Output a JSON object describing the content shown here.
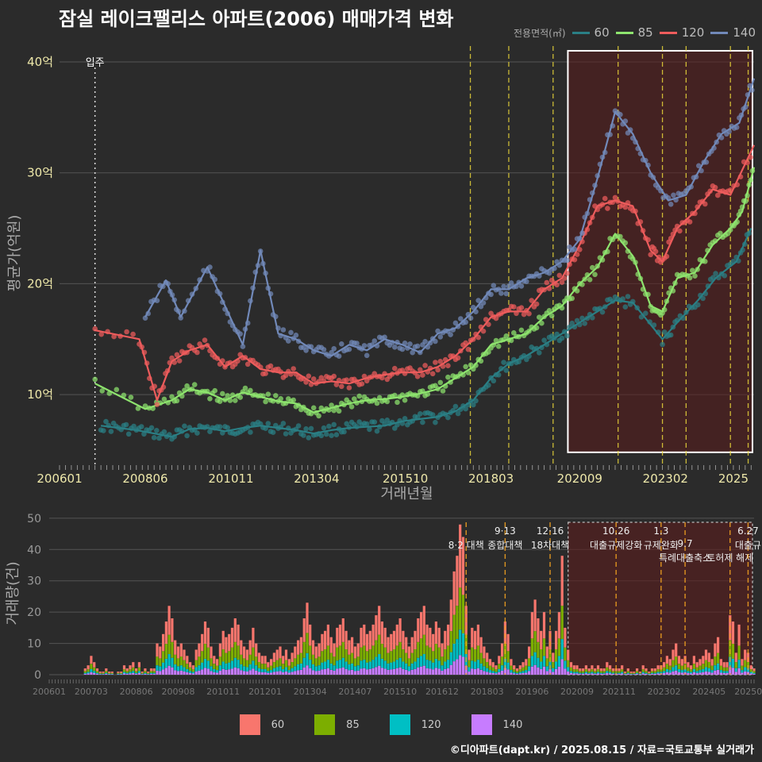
{
  "title": "잠실 레이크팰리스 아파트(2006) 매매가격 변화",
  "credit": "©디아파트(dapt.kr) / 2025.08.15 / 자료=국토교통부 실거래가",
  "colors": {
    "background": "#2b2b2b",
    "grid": "#555555",
    "policy_line": "#e8d53a",
    "highlight_border": "#ffffff",
    "highlight_fill": "#5a1c1c"
  },
  "chart_data": [
    {
      "type": "line",
      "xlabel": "거래년월",
      "ylabel": "평균가(억원)",
      "ylim": [
        3.5,
        42
      ],
      "xlim": [
        "2006-01",
        "2025-08"
      ],
      "x_ticks": [
        "200601",
        "200806",
        "201011",
        "201304",
        "201510",
        "201803",
        "202009",
        "202302",
        "2025"
      ],
      "y_ticks": [
        {
          "value": 10,
          "label": "10억"
        },
        {
          "value": 20,
          "label": "20억"
        },
        {
          "value": 30,
          "label": "30억"
        },
        {
          "value": 40,
          "label": "40억"
        }
      ],
      "legend": {
        "title": "전용면적(㎡)",
        "position": "top-right"
      },
      "annotation": {
        "label": "입주",
        "x": "2007-01"
      },
      "policy_lines": [
        "2017-08",
        "2018-09",
        "2019-12",
        "2021-10",
        "2023-01",
        "2023-09",
        "2024-12",
        "2025-06"
      ],
      "highlight": {
        "x_start": "2020-05",
        "x_end": "2025-08",
        "y_start": 4.8,
        "y_end": 41
      },
      "series": [
        {
          "name": "60",
          "color": "#2a7f85",
          "points": [
            [
              "2007-03",
              7.2
            ],
            [
              "2007-09",
              7.0
            ],
            [
              "2008-03",
              6.8
            ],
            [
              "2008-09",
              6.5
            ],
            [
              "2009-03",
              6.2
            ],
            [
              "2009-09",
              6.9
            ],
            [
              "2010-03",
              7.0
            ],
            [
              "2010-09",
              6.7
            ],
            [
              "2011-03",
              7.0
            ],
            [
              "2011-09",
              7.2
            ],
            [
              "2012-03",
              7.0
            ],
            [
              "2012-09",
              6.8
            ],
            [
              "2013-03",
              6.5
            ],
            [
              "2013-09",
              6.8
            ],
            [
              "2014-03",
              7.0
            ],
            [
              "2014-09",
              7.1
            ],
            [
              "2015-03",
              7.2
            ],
            [
              "2015-09",
              7.6
            ],
            [
              "2016-03",
              7.8
            ],
            [
              "2016-09",
              8.0
            ],
            [
              "2017-03",
              8.5
            ],
            [
              "2017-09",
              9.5
            ],
            [
              "2018-03",
              11.5
            ],
            [
              "2018-09",
              12.8
            ],
            [
              "2019-03",
              13.5
            ],
            [
              "2019-09",
              14.5
            ],
            [
              "2020-03",
              15.5
            ],
            [
              "2020-09",
              16.5
            ],
            [
              "2021-03",
              17.5
            ],
            [
              "2021-09",
              18.5
            ],
            [
              "2022-03",
              18.3
            ],
            [
              "2023-01",
              15.0
            ],
            [
              "2023-06",
              16.5
            ],
            [
              "2024-01",
              18.5
            ],
            [
              "2024-07",
              20.5
            ],
            [
              "2025-02",
              22.0
            ],
            [
              "2025-07",
              25.0
            ]
          ]
        },
        {
          "name": "85",
          "color": "#8ee46e",
          "points": [
            [
              "2007-01",
              11.0
            ],
            [
              "2008-06",
              8.7
            ],
            [
              "2009-03",
              9.5
            ],
            [
              "2009-09",
              10.5
            ],
            [
              "2010-03",
              10.2
            ],
            [
              "2010-09",
              9.5
            ],
            [
              "2011-03",
              10.2
            ],
            [
              "2011-09",
              9.8
            ],
            [
              "2012-03",
              9.4
            ],
            [
              "2012-09",
              9.2
            ],
            [
              "2013-03",
              8.4
            ],
            [
              "2013-09",
              8.8
            ],
            [
              "2014-03",
              9.2
            ],
            [
              "2014-09",
              9.5
            ],
            [
              "2015-03",
              9.6
            ],
            [
              "2015-09",
              9.8
            ],
            [
              "2016-03",
              10.1
            ],
            [
              "2016-09",
              10.5
            ],
            [
              "2017-03",
              11.5
            ],
            [
              "2017-09",
              12.5
            ],
            [
              "2018-03",
              14.5
            ],
            [
              "2018-09",
              15.0
            ],
            [
              "2019-03",
              15.5
            ],
            [
              "2019-09",
              17.0
            ],
            [
              "2020-03",
              18.0
            ],
            [
              "2020-09",
              20.0
            ],
            [
              "2021-03",
              21.5
            ],
            [
              "2021-09",
              24.5
            ],
            [
              "2022-03",
              22.5
            ],
            [
              "2022-09",
              18.0
            ],
            [
              "2023-01",
              17.5
            ],
            [
              "2023-06",
              20.5
            ],
            [
              "2023-12",
              21.0
            ],
            [
              "2024-06",
              23.5
            ],
            [
              "2024-12",
              25.0
            ],
            [
              "2025-04",
              26.5
            ],
            [
              "2025-08",
              30.5
            ]
          ]
        },
        {
          "name": "120",
          "color": "#ee5c5c",
          "points": [
            [
              "2007-01",
              15.8
            ],
            [
              "2008-04",
              15.0
            ],
            [
              "2008-10",
              9.5
            ],
            [
              "2009-03",
              13.0
            ],
            [
              "2009-09",
              14.0
            ],
            [
              "2010-03",
              14.5
            ],
            [
              "2010-09",
              12.5
            ],
            [
              "2011-03",
              13.5
            ],
            [
              "2011-09",
              12.3
            ],
            [
              "2012-03",
              12.0
            ],
            [
              "2012-09",
              12.0
            ],
            [
              "2013-03",
              11.0
            ],
            [
              "2013-09",
              11.2
            ],
            [
              "2014-03",
              11.0
            ],
            [
              "2014-09",
              11.5
            ],
            [
              "2015-03",
              11.8
            ],
            [
              "2015-09",
              12.0
            ],
            [
              "2016-03",
              12.0
            ],
            [
              "2016-09",
              12.5
            ],
            [
              "2017-03",
              13.5
            ],
            [
              "2017-09",
              15.0
            ],
            [
              "2018-03",
              17.0
            ],
            [
              "2018-09",
              17.5
            ],
            [
              "2019-03",
              17.5
            ],
            [
              "2019-09",
              19.5
            ],
            [
              "2020-03",
              20.5
            ],
            [
              "2020-09",
              23.5
            ],
            [
              "2021-03",
              27.0
            ],
            [
              "2021-09",
              27.5
            ],
            [
              "2022-03",
              27.0
            ],
            [
              "2022-09",
              23.0
            ],
            [
              "2023-01",
              22.0
            ],
            [
              "2023-06",
              25.0
            ],
            [
              "2023-12",
              26.5
            ],
            [
              "2024-06",
              28.5
            ],
            [
              "2024-12",
              28.0
            ],
            [
              "2025-08",
              32.5
            ]
          ]
        },
        {
          "name": "140",
          "color": "#7189b9",
          "points": [
            [
              "2008-06",
              17.0
            ],
            [
              "2009-01",
              20.3
            ],
            [
              "2009-06",
              17.0
            ],
            [
              "2010-03",
              21.5
            ],
            [
              "2010-09",
              18.0
            ],
            [
              "2011-03",
              14.5
            ],
            [
              "2011-09",
              23.0
            ],
            [
              "2012-03",
              15.5
            ],
            [
              "2012-09",
              15.0
            ],
            [
              "2013-03",
              14.0
            ],
            [
              "2013-09",
              13.5
            ],
            [
              "2014-03",
              14.5
            ],
            [
              "2014-09",
              14.0
            ],
            [
              "2015-03",
              15.0
            ],
            [
              "2015-09",
              14.5
            ],
            [
              "2016-03",
              13.8
            ],
            [
              "2016-09",
              15.5
            ],
            [
              "2017-03",
              16.0
            ],
            [
              "2017-09",
              17.5
            ],
            [
              "2018-03",
              19.5
            ],
            [
              "2018-09",
              19.5
            ],
            [
              "2019-03",
              20.5
            ],
            [
              "2019-09",
              21.0
            ],
            [
              "2020-03",
              22.0
            ],
            [
              "2020-09",
              24.0
            ],
            [
              "2021-03",
              29.5
            ],
            [
              "2021-09",
              35.5
            ],
            [
              "2022-03",
              33.5
            ],
            [
              "2022-09",
              30.0
            ],
            [
              "2023-03",
              27.5
            ],
            [
              "2023-09",
              28.0
            ],
            [
              "2024-03",
              31.0
            ],
            [
              "2024-09",
              33.5
            ],
            [
              "2025-03",
              34.5
            ],
            [
              "2025-08",
              38.5
            ]
          ]
        }
      ]
    },
    {
      "type": "bar",
      "ylabel": "거래량(건)",
      "ylim": [
        0,
        52
      ],
      "x_ticks": [
        "200601",
        "200703",
        "200806",
        "200908",
        "201011",
        "201201",
        "201304",
        "201407",
        "201510",
        "201612",
        "201803",
        "201906",
        "202009",
        "202111",
        "202302",
        "202405",
        "202507"
      ],
      "y_ticks": [
        0,
        10,
        20,
        30,
        40,
        50
      ],
      "legend_position": "bottom",
      "series_names": [
        "60",
        "85",
        "120",
        "140"
      ],
      "series_colors": [
        "#f8766d",
        "#7cae00",
        "#00bfc4",
        "#c77cff"
      ],
      "highlight": {
        "x_start": "2020-06",
        "x_end": "2025-08"
      },
      "policy_events": [
        {
          "date": "2017-08",
          "date_label": "",
          "label": "8·2 대책"
        },
        {
          "date": "2018-09",
          "date_label": "9·13",
          "label": "종합대책"
        },
        {
          "date": "2019-12",
          "date_label": "12·16",
          "label": "18차대책"
        },
        {
          "date": "2021-10",
          "date_label": "10.26",
          "label": "대출규제강화"
        },
        {
          "date": "2023-01",
          "date_label": "1.3",
          "label": "규제완화"
        },
        {
          "date": "2023-09",
          "date_label": "9.7",
          "label": "특례대출축소"
        },
        {
          "date": "2024-12",
          "date_label": "",
          "label": "토허제 해제"
        },
        {
          "date": "2025-06",
          "date_label": "6.27",
          "label": "대출규"
        }
      ],
      "monthly_totals_by_year": [
        {
          "year": 2006,
          "values": [
            0,
            0,
            0,
            0,
            0,
            0,
            0,
            0,
            0,
            0,
            0,
            0
          ]
        },
        {
          "year": 2007,
          "values": [
            2,
            3,
            6,
            4,
            2,
            1,
            1,
            2,
            1,
            1,
            0,
            1
          ]
        },
        {
          "year": 2008,
          "values": [
            1,
            3,
            2,
            3,
            4,
            2,
            4,
            1,
            2,
            1,
            2,
            2
          ]
        },
        {
          "year": 2009,
          "values": [
            10,
            9,
            13,
            17,
            22,
            18,
            11,
            9,
            10,
            8,
            6,
            4
          ]
        },
        {
          "year": 2010,
          "values": [
            3,
            8,
            10,
            13,
            17,
            15,
            9,
            6,
            5,
            10,
            14,
            12
          ]
        },
        {
          "year": 2011,
          "values": [
            13,
            15,
            18,
            16,
            11,
            9,
            8,
            11,
            15,
            10,
            7,
            6
          ]
        },
        {
          "year": 2012,
          "values": [
            6,
            4,
            5,
            7,
            8,
            9,
            6,
            8,
            5,
            7,
            9,
            11
          ]
        },
        {
          "year": 2013,
          "values": [
            12,
            18,
            23,
            16,
            11,
            9,
            10,
            13,
            14,
            16,
            12,
            10
          ]
        },
        {
          "year": 2014,
          "values": [
            15,
            16,
            18,
            14,
            11,
            12,
            9,
            10,
            15,
            16,
            13,
            14
          ]
        },
        {
          "year": 2015,
          "values": [
            16,
            19,
            22,
            17,
            15,
            12,
            13,
            14,
            16,
            18,
            14,
            12
          ]
        },
        {
          "year": 2016,
          "values": [
            9,
            12,
            14,
            18,
            20,
            22,
            16,
            15,
            13,
            17,
            15,
            10
          ]
        },
        {
          "year": 2017,
          "values": [
            14,
            16,
            24,
            33,
            38,
            48,
            44,
            22,
            8,
            15,
            14,
            16
          ]
        },
        {
          "year": 2018,
          "values": [
            12,
            9,
            7,
            5,
            4,
            3,
            6,
            10,
            17,
            13,
            5,
            3
          ]
        },
        {
          "year": 2019,
          "values": [
            2,
            3,
            4,
            5,
            9,
            20,
            24,
            18,
            14,
            20,
            9,
            14
          ]
        },
        {
          "year": 2020,
          "values": [
            7,
            14,
            20,
            38,
            15,
            8,
            4,
            3,
            3,
            2,
            2,
            3
          ]
        },
        {
          "year": 2021,
          "values": [
            2,
            3,
            2,
            3,
            2,
            2,
            4,
            3,
            2,
            2,
            2,
            3
          ]
        },
        {
          "year": 2022,
          "values": [
            1,
            2,
            1,
            1,
            2,
            1,
            3,
            2,
            1,
            2,
            2,
            3
          ]
        },
        {
          "year": 2023,
          "values": [
            3,
            4,
            6,
            5,
            8,
            10,
            6,
            5,
            6,
            4,
            3,
            6
          ]
        },
        {
          "year": 2024,
          "values": [
            4,
            5,
            6,
            8,
            7,
            5,
            10,
            12,
            5,
            4,
            4,
            19
          ]
        },
        {
          "year": 2025,
          "values": [
            17,
            7,
            16,
            5,
            8,
            7,
            3,
            2,
            0,
            0,
            0,
            0
          ]
        }
      ]
    }
  ]
}
